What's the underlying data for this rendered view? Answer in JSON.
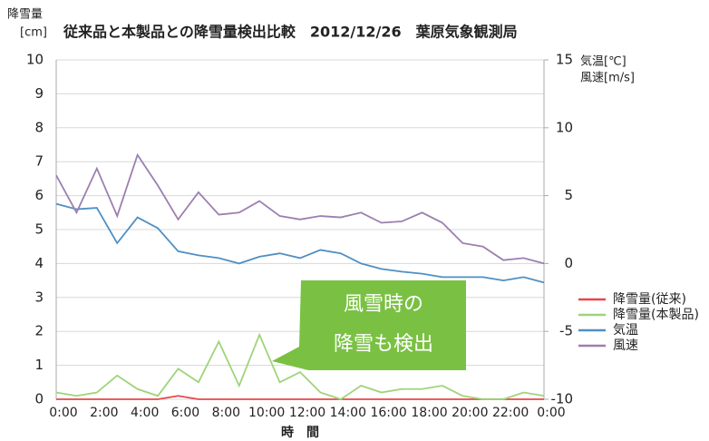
{
  "chart_data": {
    "type": "line",
    "title": "従来品と本製品との降雪量検出比較　2012/12/26　葉原気象観測局",
    "y_label": [
      "降雪量",
      "[cm]"
    ],
    "y2_label": [
      "気温[℃]",
      "風速[m/s]"
    ],
    "x_label": "時　間",
    "annotation": [
      "風雪時の",
      "降雪も検出"
    ],
    "categories": [
      "0:00",
      null,
      "2:00",
      null,
      "4:00",
      null,
      "6:00",
      null,
      "8:00",
      null,
      "10:00",
      null,
      "12:00",
      null,
      "14:00",
      null,
      "16:00",
      null,
      "18:00",
      null,
      "20:00",
      null,
      "22:00",
      null,
      "0:00"
    ],
    "ylim": [
      0,
      10
    ],
    "yticks": [
      0,
      1,
      2,
      3,
      4,
      5,
      6,
      7,
      8,
      9,
      10
    ],
    "y2lim": [
      -10,
      15
    ],
    "y2ticks": [
      -10,
      -5,
      0,
      5,
      10,
      15
    ],
    "grid": true,
    "legend": "right",
    "series": [
      {
        "name": "降雪量(従来)",
        "color": "#e8474c",
        "values": [
          0,
          0,
          0,
          0,
          0,
          0,
          0.1,
          0,
          0,
          0,
          0,
          0,
          0,
          0,
          0,
          0,
          0,
          0,
          0,
          0,
          0,
          0,
          0,
          0,
          0
        ]
      },
      {
        "name": "降雪量(本製品)",
        "color": "#9fd47a",
        "values": [
          0.2,
          0.1,
          0.2,
          0.7,
          0.3,
          0.1,
          0.9,
          0.5,
          1.7,
          0.4,
          1.9,
          0.5,
          0.8,
          0.2,
          0,
          0.4,
          0.2,
          0.3,
          0.3,
          0.4,
          0.1,
          0,
          0,
          0.2,
          0.1
        ]
      },
      {
        "name": "気温",
        "color": "#4f8fc4",
        "axis": "y2",
        "values": [
          4.4,
          4,
          4.1,
          1.5,
          3.4,
          2.6,
          0.9,
          0.6,
          0.4,
          0,
          0.5,
          0.75,
          0.4,
          1,
          0.75,
          0,
          -0.4,
          -0.6,
          -0.75,
          -1,
          -1,
          -1,
          -1.25,
          -1,
          -1.4
        ]
      },
      {
        "name": "風速",
        "color": "#9b7fb0",
        "axis": "y2",
        "values": [
          6.5,
          3.75,
          7,
          3.5,
          8,
          5.75,
          3.25,
          5.25,
          3.6,
          3.75,
          4.6,
          3.5,
          3.25,
          3.5,
          3.4,
          3.75,
          3,
          3.1,
          3.75,
          3,
          1.5,
          1.25,
          0.25,
          0.4,
          0
        ]
      }
    ]
  }
}
